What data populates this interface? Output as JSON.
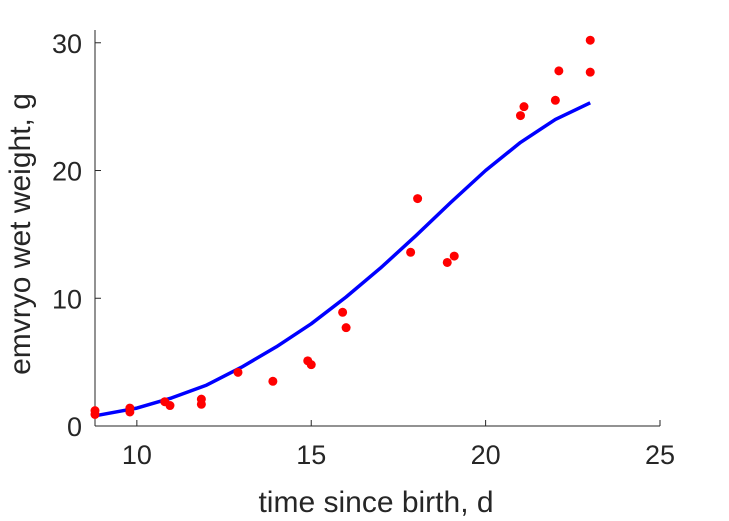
{
  "chart_data": {
    "type": "scatter",
    "xlabel": "time since birth, d",
    "ylabel": "emvryo wet weight, g",
    "xlim": [
      8.8,
      25
    ],
    "ylim": [
      0,
      31
    ],
    "xticks": [
      10,
      15,
      20,
      25
    ],
    "yticks": [
      0,
      10,
      20,
      30
    ],
    "grid": false,
    "series": [
      {
        "kind": "points",
        "color": "#ff0000",
        "x": [
          8.8,
          8.8,
          9.8,
          9.8,
          10.8,
          10.95,
          11.85,
          11.85,
          12.9,
          13.9,
          14.9,
          15.0,
          15.9,
          16.0,
          17.85,
          18.05,
          18.9,
          19.1,
          21.0,
          21.1,
          22.0,
          22.1,
          23.0,
          23.0
        ],
        "y": [
          0.9,
          1.2,
          1.1,
          1.4,
          1.9,
          1.6,
          2.1,
          1.7,
          4.2,
          3.5,
          5.1,
          4.8,
          8.9,
          7.7,
          13.6,
          17.8,
          12.8,
          13.3,
          24.3,
          25.0,
          25.5,
          27.8,
          27.7,
          30.2
        ]
      },
      {
        "kind": "line",
        "color": "#0000ff",
        "x": [
          8.8,
          10,
          11,
          12,
          13,
          14,
          15,
          16,
          17,
          18,
          19,
          20,
          21,
          22,
          23
        ],
        "y": [
          0.8,
          1.4,
          2.2,
          3.2,
          4.6,
          6.2,
          8.0,
          10.1,
          12.4,
          14.9,
          17.5,
          20.0,
          22.2,
          24.0,
          25.3
        ]
      }
    ]
  }
}
